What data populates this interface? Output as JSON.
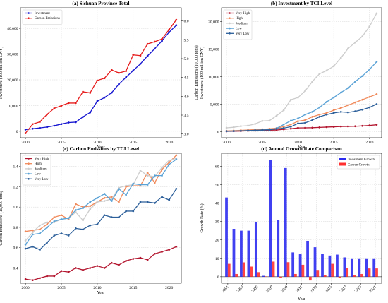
{
  "chart_data": [
    {
      "type": "line",
      "title": "(a) Sichuan Province Total",
      "xlabel": "Year",
      "ylabel": "Investment (100 million CNY)",
      "ylabel_right": "Carbon Emissions (10,000 tons)",
      "xlim": [
        1999.3,
        2021.7
      ],
      "ylim": [
        -2500,
        48000
      ],
      "ylim_right": [
        2.9,
        6.35
      ],
      "xticks": [
        2000,
        2005,
        2010,
        2015,
        2020
      ],
      "yticks": [
        0,
        10000,
        20000,
        30000,
        40000
      ],
      "yticks_right": [
        3.0,
        3.5,
        4.0,
        4.5,
        5.0,
        5.5,
        6.0
      ],
      "grid": true,
      "legend_position": "top-left",
      "x": [
        2000,
        2001,
        2002,
        2003,
        2004,
        2005,
        2006,
        2007,
        2008,
        2009,
        2010,
        2011,
        2012,
        2013,
        2014,
        2015,
        2016,
        2017,
        2018,
        2019,
        2020,
        2021
      ],
      "series": [
        {
          "name": "Investment",
          "axis": "left",
          "color": "#1515d0",
          "values": [
            650,
            1000,
            1300,
            1650,
            2150,
            2800,
            3400,
            3550,
            5600,
            7300,
            11700,
            13100,
            15000,
            18300,
            21000,
            23600,
            26200,
            29300,
            32100,
            35100,
            38500,
            41200
          ]
        },
        {
          "name": "Carbon Emissions",
          "axis": "right",
          "color": "#e61c1c",
          "values": [
            3.02,
            3.26,
            3.32,
            3.52,
            3.68,
            3.75,
            3.82,
            3.82,
            4.12,
            4.09,
            4.42,
            4.48,
            4.7,
            4.62,
            4.67,
            5.1,
            5.08,
            5.39,
            5.45,
            5.52,
            5.77,
            6.03
          ]
        }
      ]
    },
    {
      "type": "line",
      "title": "(b) Investment by TCI Level",
      "xlabel": "Year",
      "ylabel": "Investment (100 million CNY)",
      "xlim": [
        1999.3,
        2021.7
      ],
      "ylim": [
        -1100,
        22500
      ],
      "xticks": [
        2000,
        2005,
        2010,
        2015,
        2020
      ],
      "yticks": [
        0,
        5000,
        10000,
        15000,
        20000
      ],
      "grid": true,
      "legend_position": "top-left",
      "x": [
        2000,
        2001,
        2002,
        2003,
        2004,
        2005,
        2006,
        2007,
        2008,
        2009,
        2010,
        2011,
        2012,
        2013,
        2014,
        2015,
        2016,
        2017,
        2018,
        2019,
        2020,
        2021
      ],
      "series": [
        {
          "name": "Very High",
          "color": "#b3162f",
          "values": [
            50,
            80,
            100,
            150,
            180,
            220,
            260,
            300,
            420,
            540,
            680,
            700,
            720,
            780,
            830,
            880,
            940,
            960,
            980,
            1050,
            1130,
            1250
          ]
        },
        {
          "name": "High",
          "color": "#f08a5b",
          "values": [
            150,
            200,
            250,
            300,
            380,
            450,
            520,
            650,
            900,
            1300,
            1900,
            2100,
            2700,
            3100,
            3400,
            3900,
            4300,
            4800,
            5300,
            5800,
            6300,
            6800
          ]
        },
        {
          "name": "Medium",
          "color": "#cccccc",
          "values": [
            700,
            800,
            1000,
            1100,
            1400,
            1950,
            2000,
            2900,
            3900,
            5800,
            6200,
            7400,
            9100,
            10500,
            11100,
            11900,
            13400,
            15100,
            16200,
            17300,
            19100,
            21500
          ]
        },
        {
          "name": "Low",
          "color": "#5aa2d6",
          "values": [
            100,
            130,
            150,
            200,
            260,
            300,
            350,
            600,
            1300,
            2000,
            2400,
            3100,
            3600,
            4400,
            5400,
            6200,
            7100,
            7900,
            9100,
            10100,
            11300,
            12700
          ]
        },
        {
          "name": "Very Low",
          "color": "#2c5f9a",
          "values": [
            80,
            100,
            150,
            200,
            250,
            300,
            350,
            500,
            650,
            900,
            1500,
            1600,
            2100,
            2700,
            3100,
            3400,
            3600,
            3500,
            3700,
            4000,
            4400,
            5000
          ]
        }
      ]
    },
    {
      "type": "line",
      "title": "(c) Carbon Emissions by TCI Level",
      "xlabel": "Year",
      "ylabel": "Carbon Emissions (10,000 tons)",
      "xlim": [
        1999.3,
        2021.7
      ],
      "ylim": [
        0.25,
        1.53
      ],
      "xticks": [
        2000,
        2005,
        2010,
        2015,
        2020
      ],
      "yticks": [
        0.4,
        0.6,
        0.8,
        1.0,
        1.2,
        1.4
      ],
      "grid": true,
      "legend_position": "top-left",
      "x": [
        2000,
        2001,
        2002,
        2003,
        2004,
        2005,
        2006,
        2007,
        2008,
        2009,
        2010,
        2011,
        2012,
        2013,
        2014,
        2015,
        2016,
        2017,
        2018,
        2019,
        2020,
        2021
      ],
      "series": [
        {
          "name": "Very High",
          "color": "#b3162f",
          "values": [
            0.29,
            0.28,
            0.3,
            0.32,
            0.32,
            0.37,
            0.36,
            0.4,
            0.38,
            0.4,
            0.42,
            0.4,
            0.45,
            0.43,
            0.47,
            0.49,
            0.5,
            0.48,
            0.54,
            0.56,
            0.58,
            0.61
          ]
        },
        {
          "name": "High",
          "color": "#f08a5b",
          "values": [
            0.76,
            0.77,
            0.78,
            0.83,
            0.9,
            0.92,
            0.88,
            1.03,
            1.0,
            1.01,
            1.05,
            1.09,
            1.1,
            1.05,
            1.2,
            1.21,
            1.21,
            1.34,
            1.24,
            1.37,
            1.44,
            1.51
          ]
        },
        {
          "name": "Medium",
          "color": "#cccccc",
          "values": [
            0.67,
            0.75,
            0.82,
            0.85,
            0.85,
            0.88,
            0.89,
            0.95,
            0.87,
            0.98,
            1.05,
            1.06,
            1.08,
            1.19,
            1.21,
            1.22,
            1.36,
            1.31,
            1.3,
            1.39,
            1.46,
            1.48
          ]
        },
        {
          "name": "Low",
          "color": "#5aa2d6",
          "values": [
            0.63,
            0.73,
            0.74,
            0.8,
            0.86,
            0.88,
            0.89,
            0.97,
            0.99,
            1.05,
            1.09,
            1.13,
            1.06,
            1.18,
            1.12,
            1.23,
            1.22,
            1.22,
            1.31,
            1.31,
            1.42,
            1.47
          ]
        },
        {
          "name": "Very Low",
          "color": "#2c5f9a",
          "values": [
            0.59,
            0.61,
            0.58,
            0.65,
            0.72,
            0.74,
            0.72,
            0.79,
            0.78,
            0.82,
            0.83,
            0.92,
            0.9,
            0.9,
            0.96,
            0.96,
            1.05,
            1.05,
            1.04,
            1.1,
            1.07,
            1.18
          ]
        }
      ]
    },
    {
      "type": "bar",
      "title": "(d) Annual Growth Rate Comparison",
      "xlabel": "Year",
      "ylabel": "Growth Rate (%)",
      "ylim": [
        -3.5,
        67
      ],
      "yticks": [
        0,
        10,
        20,
        30,
        40,
        50,
        60
      ],
      "grid": true,
      "legend_position": "top-right",
      "categories": [
        "2001",
        "2002",
        "2003",
        "2004",
        "2005",
        "2006",
        "2007",
        "2008",
        "2009",
        "2010",
        "2011",
        "2012",
        "2013",
        "2014",
        "2015",
        "2016",
        "2017",
        "2018",
        "2019",
        "2020",
        "2021"
      ],
      "tick_labels": [
        "2001",
        "2003",
        "2005",
        "2007",
        "2009",
        "2011",
        "2013",
        "2015",
        "2017",
        "2019",
        "2021"
      ],
      "series": [
        {
          "name": "Investment Growth",
          "color": "#2b2bf0",
          "values": [
            43,
            26,
            25,
            25,
            29.5,
            0.5,
            63.5,
            30.8,
            59,
            13.2,
            12.2,
            19.5,
            16,
            12.3,
            11.5,
            12,
            10.5,
            10,
            10,
            10,
            10
          ]
        },
        {
          "name": "Carbon Growth",
          "color": "#ff3030",
          "values": [
            7,
            1.5,
            7.8,
            5.5,
            2.5,
            0.2,
            8.2,
            -0.5,
            7.9,
            1.5,
            6.5,
            -2,
            3.7,
            1.1,
            7,
            -0.5,
            4.6,
            0.8,
            1.5,
            4.5,
            4.5
          ]
        }
      ]
    }
  ]
}
